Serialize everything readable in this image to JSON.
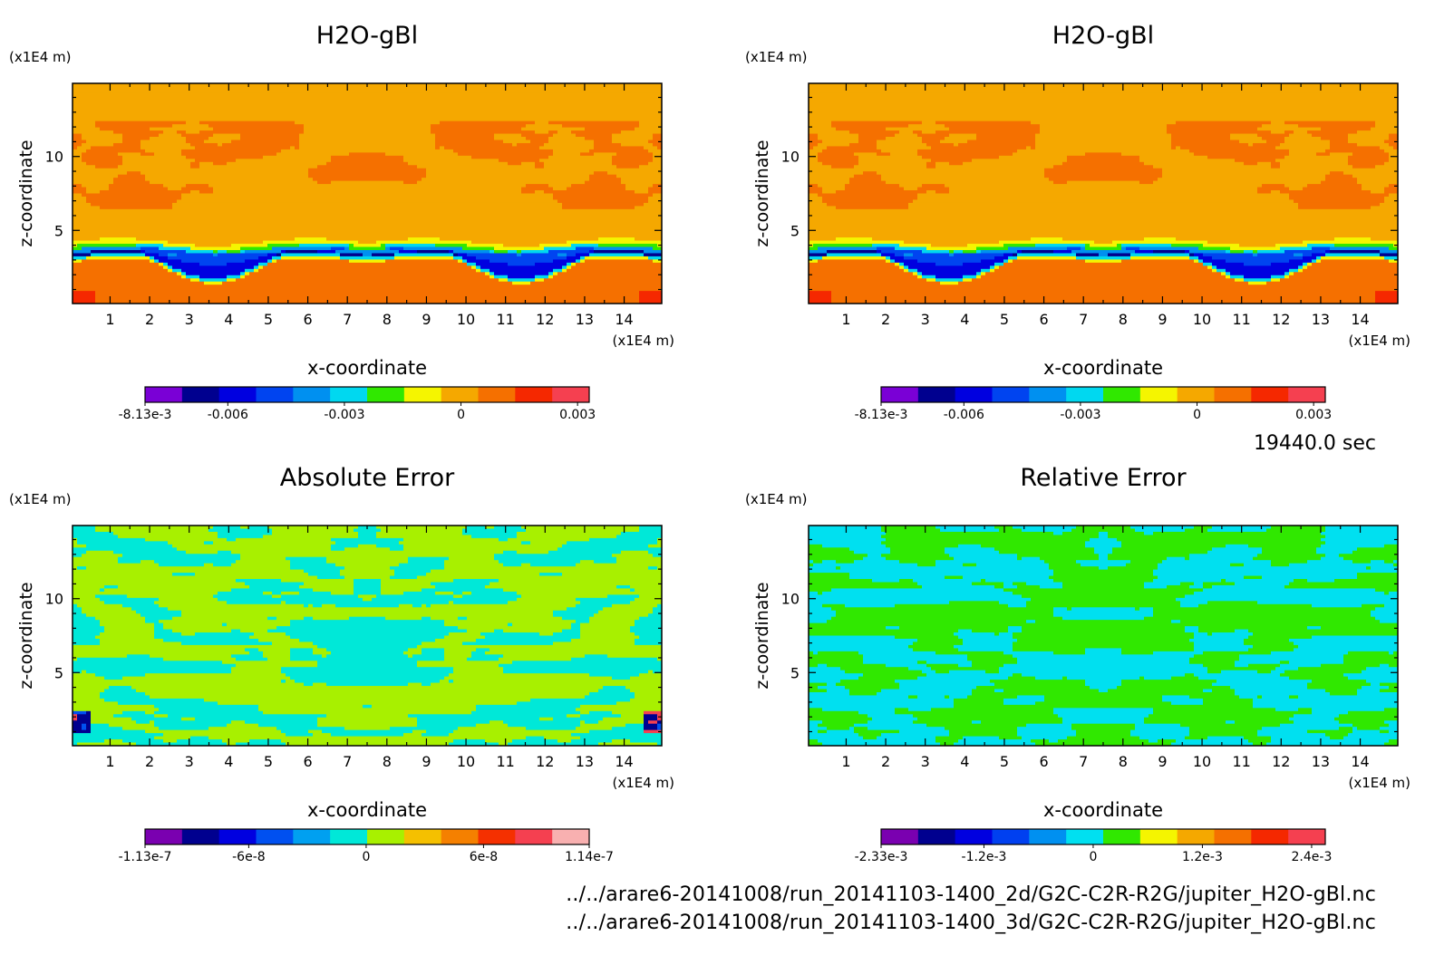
{
  "time_label": "19440.0 sec",
  "footer_lines": [
    "../../arare6-20141008/run_20141103-1400_2d/G2C-C2R-R2G/jupiter_H2O-gBl.nc",
    "../../arare6-20141008/run_20141103-1400_3d/G2C-C2R-R2G/jupiter_H2O-gBl.nc"
  ],
  "chart_data": [
    {
      "type": "heatmap",
      "title": "H2O-gBl",
      "xlabel": "x-coordinate",
      "ylabel": "z-coordinate",
      "x_unit": "(x1E4 m)",
      "y_unit": "(x1E4 m)",
      "x_ticks": [
        1,
        2,
        3,
        4,
        5,
        6,
        7,
        8,
        9,
        10,
        11,
        12,
        13,
        14
      ],
      "y_ticks": [
        5,
        10
      ],
      "xlim": [
        0.05,
        14.95
      ],
      "ylim": [
        0.05,
        14.95
      ],
      "field": "water",
      "colorbar": {
        "colors": [
          "#7a00d6",
          "#00008f",
          "#0000e0",
          "#0044f0",
          "#0090f0",
          "#00d8f0",
          "#30e800",
          "#f5f500",
          "#f5a800",
          "#f57000",
          "#f52800",
          "#f54050"
        ],
        "tick_labels": [
          "-8.13e-3",
          "-0.006",
          "-0.003",
          "0",
          "0.003"
        ],
        "tick_values": [
          -0.00813,
          -0.006,
          -0.003,
          0,
          0.003
        ],
        "range": [
          -0.00813,
          0.0033
        ]
      }
    },
    {
      "type": "heatmap",
      "title": "H2O-gBl",
      "xlabel": "x-coordinate",
      "ylabel": "z-coordinate",
      "x_unit": "(x1E4 m)",
      "y_unit": "(x1E4 m)",
      "x_ticks": [
        1,
        2,
        3,
        4,
        5,
        6,
        7,
        8,
        9,
        10,
        11,
        12,
        13,
        14
      ],
      "y_ticks": [
        5,
        10
      ],
      "xlim": [
        0.05,
        14.95
      ],
      "ylim": [
        0.05,
        14.95
      ],
      "field": "water",
      "colorbar": {
        "colors": [
          "#7a00d6",
          "#00008f",
          "#0000e0",
          "#0044f0",
          "#0090f0",
          "#00d8f0",
          "#30e800",
          "#f5f500",
          "#f5a800",
          "#f57000",
          "#f52800",
          "#f54050"
        ],
        "tick_labels": [
          "-8.13e-3",
          "-0.006",
          "-0.003",
          "0",
          "0.003"
        ],
        "tick_values": [
          -0.00813,
          -0.006,
          -0.003,
          0,
          0.003
        ],
        "range": [
          -0.00813,
          0.0033
        ]
      }
    },
    {
      "type": "heatmap",
      "title": "Absolute Error",
      "xlabel": "x-coordinate",
      "ylabel": "z-coordinate",
      "x_unit": "(x1E4 m)",
      "y_unit": "(x1E4 m)",
      "x_ticks": [
        1,
        2,
        3,
        4,
        5,
        6,
        7,
        8,
        9,
        10,
        11,
        12,
        13,
        14
      ],
      "y_ticks": [
        5,
        10
      ],
      "xlim": [
        0.05,
        14.95
      ],
      "ylim": [
        0.05,
        14.95
      ],
      "field": "abs",
      "colorbar": {
        "colors": [
          "#7a00b0",
          "#00008f",
          "#0000e0",
          "#0050f0",
          "#00a0f0",
          "#00e8d8",
          "#a8f000",
          "#f5c000",
          "#f58000",
          "#f53000",
          "#f54050",
          "#f8b0b0"
        ],
        "tick_labels": [
          "-1.13e-7",
          "-6e-8",
          "0",
          "6e-8",
          "1.14e-7"
        ],
        "tick_values": [
          -1.13e-07,
          -6e-08,
          0,
          6e-08,
          1.14e-07
        ],
        "range": [
          -1.13e-07,
          1.14e-07
        ]
      }
    },
    {
      "type": "heatmap",
      "title": "Relative Error",
      "xlabel": "x-coordinate",
      "ylabel": "z-coordinate",
      "x_unit": "(x1E4 m)",
      "y_unit": "(x1E4 m)",
      "x_ticks": [
        1,
        2,
        3,
        4,
        5,
        6,
        7,
        8,
        9,
        10,
        11,
        12,
        13,
        14
      ],
      "y_ticks": [
        5,
        10
      ],
      "xlim": [
        0.05,
        14.95
      ],
      "ylim": [
        0.05,
        14.95
      ],
      "field": "rel",
      "colorbar": {
        "colors": [
          "#7a00b0",
          "#00008f",
          "#0000e0",
          "#0040f0",
          "#0090f0",
          "#00e0f0",
          "#30e800",
          "#f5f500",
          "#f5a800",
          "#f57000",
          "#f52800",
          "#f54050"
        ],
        "tick_labels": [
          "-2.33e-3",
          "-1.2e-3",
          "0",
          "1.2e-3",
          "2.4e-3"
        ],
        "tick_values": [
          -0.00233,
          -0.0012,
          0,
          0.0012,
          0.0024
        ],
        "range": [
          -0.00233,
          0.00255
        ]
      }
    }
  ]
}
